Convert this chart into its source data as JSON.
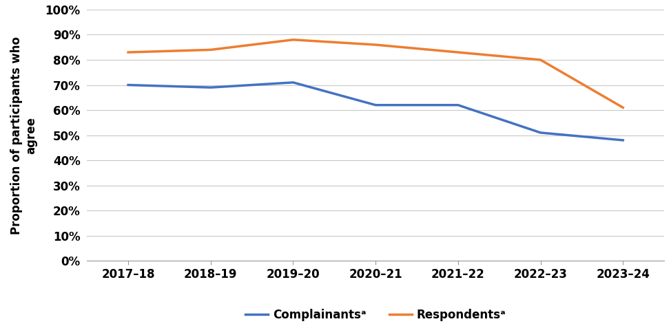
{
  "x_labels": [
    "2017–18",
    "2018–19",
    "2019–20",
    "2020–21",
    "2021–22",
    "2022–23",
    "2023–24"
  ],
  "complainants": [
    0.7,
    0.69,
    0.71,
    0.62,
    0.62,
    0.51,
    0.48
  ],
  "respondents": [
    0.83,
    0.84,
    0.88,
    0.86,
    0.83,
    0.8,
    0.61
  ],
  "complainants_color": "#4472C4",
  "respondents_color": "#ED7D31",
  "complainants_label": "Complainantsᵃ",
  "respondents_label": "Respondentsᵃ",
  "ylabel_line1": "Proportion of participants who",
  "ylabel_line2": "agree",
  "ylim": [
    0.0,
    1.0
  ],
  "yticks": [
    0.0,
    0.1,
    0.2,
    0.3,
    0.4,
    0.5,
    0.6,
    0.7,
    0.8,
    0.9,
    1.0
  ],
  "line_width": 2.5,
  "background_color": "#ffffff",
  "grid_color": "#c8c8c8",
  "font_size": 12,
  "font_weight": "bold"
}
